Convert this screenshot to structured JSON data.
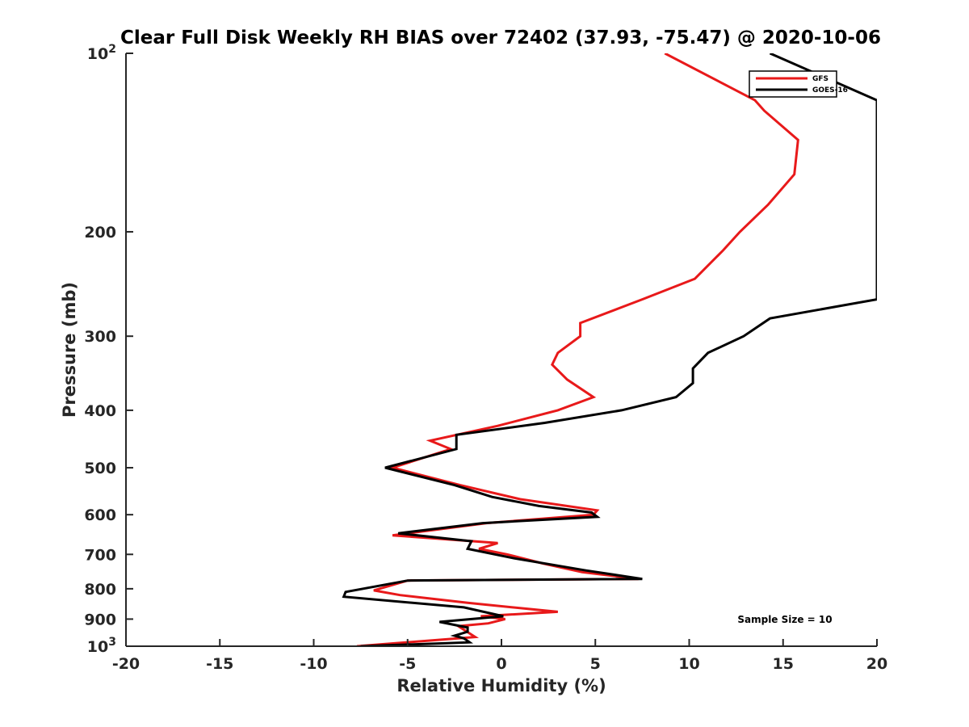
{
  "chart_data": {
    "type": "line",
    "title": "Clear Full Disk Weekly RH BIAS over 72402 (37.93, -75.47) @ 2020-10-06",
    "xlabel": "Relative Humidity (%)",
    "ylabel": "Pressure (mb)",
    "xlim": [
      -20,
      20
    ],
    "ylim": [
      100,
      1000
    ],
    "yscale": "log",
    "y_reversed": true,
    "grid": false,
    "legend_position": "top-right",
    "x_ticks": [
      -20,
      -15,
      -10,
      -5,
      0,
      5,
      10,
      15,
      20
    ],
    "y_ticks": [
      {
        "value": 100,
        "label": "10",
        "sup": "2"
      },
      {
        "value": 200,
        "label": "200",
        "sup": ""
      },
      {
        "value": 300,
        "label": "300",
        "sup": ""
      },
      {
        "value": 400,
        "label": "400",
        "sup": ""
      },
      {
        "value": 500,
        "label": "500",
        "sup": ""
      },
      {
        "value": 600,
        "label": "600",
        "sup": ""
      },
      {
        "value": 700,
        "label": "700",
        "sup": ""
      },
      {
        "value": 800,
        "label": "800",
        "sup": ""
      },
      {
        "value": 900,
        "label": "900",
        "sup": ""
      },
      {
        "value": 1000,
        "label": "10",
        "sup": "3"
      }
    ],
    "annotation": "Sample Size = 10",
    "series": [
      {
        "name": "GFS",
        "color": "#e8191a",
        "points": [
          [
            8.7,
            100
          ],
          [
            13.5,
            120
          ],
          [
            14.0,
            125
          ],
          [
            15.8,
            140
          ],
          [
            15.6,
            160
          ],
          [
            14.2,
            180
          ],
          [
            12.7,
            200
          ],
          [
            11.8,
            215
          ],
          [
            10.3,
            240
          ],
          [
            7.5,
            260
          ],
          [
            4.2,
            285
          ],
          [
            4.2,
            300
          ],
          [
            3.0,
            320
          ],
          [
            2.7,
            335
          ],
          [
            3.5,
            355
          ],
          [
            4.9,
            380
          ],
          [
            3.0,
            400
          ],
          [
            -0.2,
            425
          ],
          [
            -3.8,
            450
          ],
          [
            -2.7,
            465
          ],
          [
            -5.8,
            500
          ],
          [
            -2.2,
            535
          ],
          [
            1.0,
            565
          ],
          [
            5.1,
            590
          ],
          [
            4.9,
            600
          ],
          [
            -0.8,
            620
          ],
          [
            -5.8,
            650
          ],
          [
            -0.2,
            670
          ],
          [
            -1.2,
            685
          ],
          [
            0.3,
            700
          ],
          [
            2.2,
            725
          ],
          [
            4.3,
            750
          ],
          [
            7.3,
            770
          ],
          [
            -5.0,
            775
          ],
          [
            -6.8,
            805
          ],
          [
            -5.4,
            820
          ],
          [
            -1.8,
            845
          ],
          [
            3.0,
            875
          ],
          [
            -1.1,
            890
          ],
          [
            0.2,
            900
          ],
          [
            -0.7,
            915
          ],
          [
            -2.3,
            925
          ],
          [
            -1.4,
            965
          ],
          [
            -7.7,
            1000
          ]
        ]
      },
      {
        "name": "GOES-16",
        "color": "#000000",
        "points": [
          [
            14.3,
            100
          ],
          [
            20,
            120
          ],
          [
            20,
            260
          ],
          [
            14.3,
            280
          ],
          [
            12.9,
            300
          ],
          [
            11.0,
            320
          ],
          [
            10.2,
            340
          ],
          [
            10.2,
            360
          ],
          [
            9.3,
            380
          ],
          [
            6.4,
            400
          ],
          [
            2.3,
            420
          ],
          [
            -2.4,
            440
          ],
          [
            -2.4,
            465
          ],
          [
            -6.2,
            500
          ],
          [
            -2.5,
            535
          ],
          [
            -0.5,
            560
          ],
          [
            2.0,
            580
          ],
          [
            4.8,
            595
          ],
          [
            5.1,
            605
          ],
          [
            -1.0,
            620
          ],
          [
            -5.5,
            645
          ],
          [
            -1.6,
            665
          ],
          [
            -1.8,
            685
          ],
          [
            0.6,
            710
          ],
          [
            4.5,
            745
          ],
          [
            7.5,
            770
          ],
          [
            -5.0,
            775
          ],
          [
            -8.3,
            810
          ],
          [
            -8.4,
            825
          ],
          [
            -2.0,
            860
          ],
          [
            0.1,
            890
          ],
          [
            -3.3,
            910
          ],
          [
            -1.8,
            930
          ],
          [
            -1.8,
            945
          ],
          [
            -2.5,
            960
          ],
          [
            -2.0,
            970
          ],
          [
            -1.7,
            985
          ],
          [
            -7.5,
            1000
          ]
        ]
      }
    ]
  }
}
